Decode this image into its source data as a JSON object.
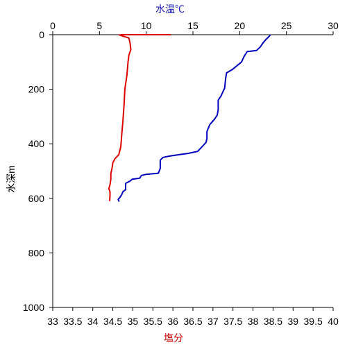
{
  "chart_data": {
    "type": "line",
    "title": "",
    "top_axis": {
      "label": "水温℃",
      "label_color": "#1a1ab4",
      "range": [
        0,
        30
      ],
      "ticks": [
        0,
        5,
        10,
        15,
        20,
        25,
        30
      ]
    },
    "bottom_axis": {
      "label": "塩分",
      "label_color": "#cc0000",
      "range": [
        33,
        40
      ],
      "ticks": [
        "33",
        "33.5",
        "34",
        "34.5",
        "35",
        "35.5",
        "36",
        "36.5",
        "37",
        "37.5",
        "38",
        "38.5",
        "39",
        "39.5",
        "40"
      ]
    },
    "y_axis": {
      "label": "水深m",
      "range": [
        0,
        1000
      ],
      "inverted": true,
      "ticks": [
        0,
        200,
        400,
        600,
        800,
        1000
      ]
    },
    "series": [
      {
        "axis": "top",
        "color": "#0000bb",
        "points": [
          [
            23.3,
            0
          ],
          [
            23.1,
            8
          ],
          [
            22.8,
            18
          ],
          [
            22.5,
            30
          ],
          [
            22.2,
            45
          ],
          [
            21.8,
            58
          ],
          [
            20.8,
            62
          ],
          [
            20.5,
            78
          ],
          [
            20.2,
            100
          ],
          [
            19.2,
            128
          ],
          [
            18.6,
            140
          ],
          [
            18.5,
            160
          ],
          [
            18.4,
            195
          ],
          [
            18.0,
            225
          ],
          [
            17.7,
            240
          ],
          [
            17.7,
            275
          ],
          [
            17.6,
            295
          ],
          [
            17.3,
            310
          ],
          [
            16.8,
            330
          ],
          [
            16.5,
            355
          ],
          [
            16.5,
            380
          ],
          [
            16.4,
            395
          ],
          [
            16.0,
            410
          ],
          [
            15.5,
            428
          ],
          [
            14.5,
            435
          ],
          [
            13.5,
            440
          ],
          [
            12.5,
            445
          ],
          [
            11.8,
            450
          ],
          [
            11.5,
            460
          ],
          [
            11.5,
            490
          ],
          [
            11.3,
            508
          ],
          [
            10.0,
            512
          ],
          [
            9.5,
            516
          ],
          [
            9.3,
            526
          ],
          [
            8.5,
            530
          ],
          [
            8.3,
            536
          ],
          [
            7.8,
            545
          ],
          [
            7.8,
            568
          ],
          [
            7.5,
            576
          ],
          [
            7.4,
            585
          ],
          [
            7.2,
            596
          ],
          [
            7.0,
            604
          ],
          [
            7.1,
            612
          ]
        ]
      },
      {
        "axis": "bottom",
        "color": "#dd0000",
        "points": [
          [
            34.65,
            0
          ],
          [
            34.75,
            5
          ],
          [
            34.9,
            12
          ],
          [
            34.93,
            30
          ],
          [
            34.95,
            55
          ],
          [
            34.9,
            75
          ],
          [
            34.88,
            100
          ],
          [
            34.85,
            150
          ],
          [
            34.8,
            200
          ],
          [
            34.78,
            260
          ],
          [
            34.75,
            320
          ],
          [
            34.72,
            370
          ],
          [
            34.7,
            410
          ],
          [
            34.65,
            440
          ],
          [
            34.55,
            455
          ],
          [
            34.5,
            470
          ],
          [
            34.48,
            490
          ],
          [
            34.45,
            510
          ],
          [
            34.45,
            530
          ],
          [
            34.43,
            550
          ],
          [
            34.4,
            565
          ],
          [
            34.43,
            575
          ],
          [
            34.43,
            590
          ],
          [
            34.42,
            610
          ]
        ],
        "surface_segment": [
          [
            34.7,
            0
          ],
          [
            35.95,
            0
          ]
        ]
      }
    ],
    "grid": false,
    "legend": "none"
  }
}
